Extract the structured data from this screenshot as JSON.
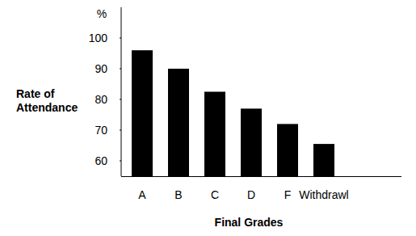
{
  "chart_data": {
    "type": "bar",
    "x_label": "Final Grades",
    "y_label": "Rate of Attendance",
    "annotations": [
      "%"
    ],
    "categories": [
      "A",
      "B",
      "C",
      "D",
      "F",
      "Withdrawl"
    ],
    "values": [
      96,
      90,
      82.5,
      77,
      72,
      65.5
    ],
    "color": "#000000",
    "ylim": [
      55,
      110
    ],
    "yticks": [
      60,
      70,
      80,
      90,
      100
    ],
    "grid": false
  }
}
